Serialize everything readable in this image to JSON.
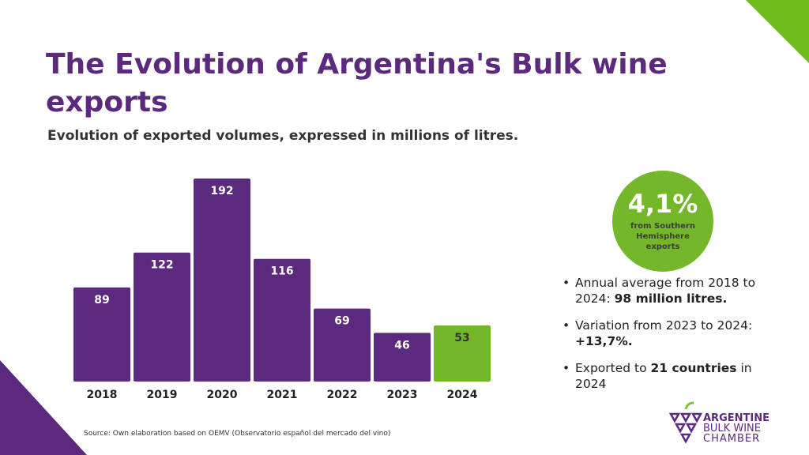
{
  "title": "The Evolution of Argentina's Bulk wine exports",
  "subtitle": "Evolution of exported volumes, expressed in millions of litres.",
  "colors": {
    "primary": "#5b2a7e",
    "accent": "#74b72a"
  },
  "chart_data": {
    "type": "bar",
    "categories": [
      "2018",
      "2019",
      "2020",
      "2021",
      "2022",
      "2023",
      "2024"
    ],
    "values": [
      89,
      122,
      192,
      116,
      69,
      46,
      53
    ],
    "highlight": "2024",
    "ylabel": "millions of litres",
    "ylim": [
      0,
      192
    ]
  },
  "highlight": {
    "value": "4,1%",
    "caption": "from Southern Hemisphere exports"
  },
  "bullets": [
    {
      "text": "Annual average from 2018 to 2024: ",
      "bold": "98 million litres."
    },
    {
      "text": "Variation from 2023 to 2024: ",
      "bold": "+13,7%."
    },
    {
      "text": "Exported to ",
      "bold": "21 countries",
      "after": " in 2024"
    }
  ],
  "source": "Source: Own elaboration based on OEMV (Observatorio español del mercado del vino)",
  "logo": {
    "line1": "ARGENTINE",
    "line2": "BULK WINE",
    "line3": "CHAMBER"
  }
}
